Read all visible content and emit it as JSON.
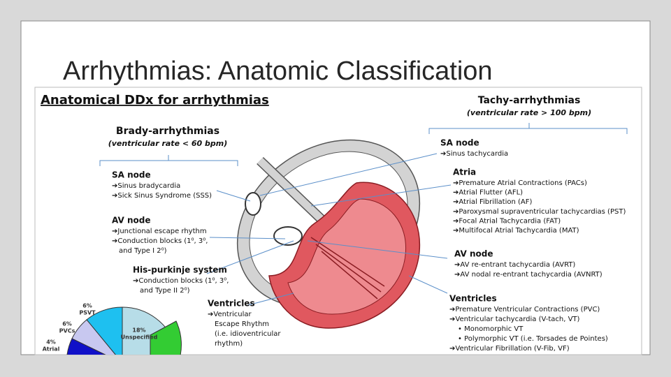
{
  "title": "Arrhythmias: Anatomic Classification",
  "figure": {
    "heading": "Anatomical DDx for arrhythmias",
    "brady": {
      "title": "Brady-arrhythmias",
      "subtitle": "(ventricular rate < 60 bpm)",
      "groups": [
        {
          "name": "SA node",
          "items": [
            "➔Sinus bradycardia",
            "➔Sick Sinus Syndrome (SSS)"
          ]
        },
        {
          "name": "AV node",
          "items": [
            "➔Junctional escape rhythm",
            "➔Conduction blocks (1⁰, 3⁰,",
            "and Type I 2⁰)"
          ]
        },
        {
          "name": "His-purkinje system",
          "items": [
            "➔Conduction blocks (1⁰, 3⁰,",
            "and Type II 2⁰)"
          ]
        },
        {
          "name": "Ventricles",
          "items": [
            "➔Ventricular",
            "Escape Rhythm",
            "(i.e. idioventricular",
            "rhythm)"
          ]
        }
      ]
    },
    "tachy": {
      "title": "Tachy-arrhythmias",
      "subtitle": "(ventricular rate > 100 bpm)",
      "groups": [
        {
          "name": "SA node",
          "items": [
            "➔Sinus tachycardia"
          ]
        },
        {
          "name": "Atria",
          "items": [
            "➔Premature Atrial Contractions (PACs)",
            "➔Atrial Flutter (AFL)",
            "➔Atrial Fibrillation (AF)",
            "➔Paroxysmal supraventricular tachycardias (PST)",
            "➔Focal Atrial Tachycardia (FAT)",
            "➔Multifocal Atrial Tachycardia (MAT)"
          ]
        },
        {
          "name": "AV node",
          "items": [
            "➔AV re-entrant tachycardia (AVRT)",
            "➔AV nodal re-entrant tachycardia (AVNRT)"
          ]
        },
        {
          "name": "Ventricles",
          "items": [
            "➔Premature Ventricular Contractions (PVC)",
            "➔Ventricular tachycardia (V-tach, VT)",
            "• Monomorphic VT",
            "• Polymorphic VT (i.e. Torsades de Pointes)",
            "➔Ventricular Fibrillation (V-Fib, VF)"
          ]
        }
      ]
    },
    "pie_labels": [
      {
        "percent": "6%",
        "label": "PSVT"
      },
      {
        "percent": "6%",
        "label": "PVCs"
      },
      {
        "percent": "4%",
        "label": "Atrial"
      },
      {
        "percent": "18%",
        "label": "Unspecified"
      }
    ]
  }
}
